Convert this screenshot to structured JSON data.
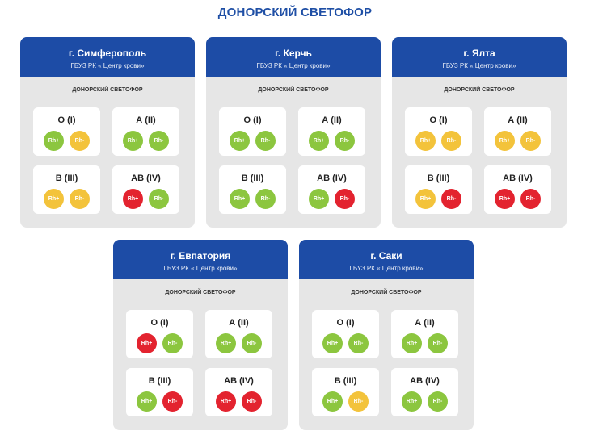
{
  "title": "ДОНОРСКИЙ СВЕТОФОР",
  "colors": {
    "green": "#8cc63f",
    "yellow": "#f3c33b",
    "red": "#e3232f",
    "header": "#1d4ca6"
  },
  "cards": [
    {
      "city": "г. Симферополь",
      "org": "ГБУЗ РК « Центр крови»",
      "subtitle": "ДОНОРСКИЙ СВЕТОФОР",
      "groups": [
        {
          "label": "О (I)",
          "rh": [
            {
              "text": "Rh+",
              "status": "green"
            },
            {
              "text": "Rh-",
              "status": "yellow"
            }
          ]
        },
        {
          "label": "А (II)",
          "rh": [
            {
              "text": "Rh+",
              "status": "green"
            },
            {
              "text": "Rh-",
              "status": "green"
            }
          ]
        },
        {
          "label": "В (III)",
          "rh": [
            {
              "text": "Rh+",
              "status": "yellow"
            },
            {
              "text": "Rh-",
              "status": "yellow"
            }
          ]
        },
        {
          "label": "АВ (IV)",
          "rh": [
            {
              "text": "Rh+",
              "status": "red"
            },
            {
              "text": "Rh-",
              "status": "green"
            }
          ]
        }
      ]
    },
    {
      "city": "г. Керчь",
      "org": "ГБУЗ РК « Центр крови»",
      "subtitle": "ДОНОРСКИЙ СВЕТОФОР",
      "groups": [
        {
          "label": "О (I)",
          "rh": [
            {
              "text": "Rh+",
              "status": "green"
            },
            {
              "text": "Rh-",
              "status": "green"
            }
          ]
        },
        {
          "label": "А (II)",
          "rh": [
            {
              "text": "Rh+",
              "status": "green"
            },
            {
              "text": "Rh-",
              "status": "green"
            }
          ]
        },
        {
          "label": "В (III)",
          "rh": [
            {
              "text": "Rh+",
              "status": "green"
            },
            {
              "text": "Rh-",
              "status": "green"
            }
          ]
        },
        {
          "label": "АВ (IV)",
          "rh": [
            {
              "text": "Rh+",
              "status": "green"
            },
            {
              "text": "Rh-",
              "status": "red"
            }
          ]
        }
      ]
    },
    {
      "city": "г. Ялта",
      "org": "ГБУЗ РК « Центр крови»",
      "subtitle": "ДОНОРСКИЙ СВЕТОФОР",
      "groups": [
        {
          "label": "О (I)",
          "rh": [
            {
              "text": "Rh+",
              "status": "yellow"
            },
            {
              "text": "Rh-",
              "status": "yellow"
            }
          ]
        },
        {
          "label": "А (II)",
          "rh": [
            {
              "text": "Rh+",
              "status": "yellow"
            },
            {
              "text": "Rh-",
              "status": "yellow"
            }
          ]
        },
        {
          "label": "В (III)",
          "rh": [
            {
              "text": "Rh+",
              "status": "yellow"
            },
            {
              "text": "Rh-",
              "status": "red"
            }
          ]
        },
        {
          "label": "АВ (IV)",
          "rh": [
            {
              "text": "Rh+",
              "status": "red"
            },
            {
              "text": "Rh-",
              "status": "red"
            }
          ]
        }
      ]
    },
    {
      "city": "г. Евпатория",
      "org": "ГБУЗ РК « Центр крови»",
      "subtitle": "ДОНОРСКИЙ СВЕТОФОР",
      "groups": [
        {
          "label": "О (I)",
          "rh": [
            {
              "text": "Rh+",
              "status": "red"
            },
            {
              "text": "Rh-",
              "status": "green"
            }
          ]
        },
        {
          "label": "А (II)",
          "rh": [
            {
              "text": "Rh+",
              "status": "green"
            },
            {
              "text": "Rh-",
              "status": "green"
            }
          ]
        },
        {
          "label": "В (III)",
          "rh": [
            {
              "text": "Rh+",
              "status": "green"
            },
            {
              "text": "Rh-",
              "status": "red"
            }
          ]
        },
        {
          "label": "АВ (IV)",
          "rh": [
            {
              "text": "Rh+",
              "status": "red"
            },
            {
              "text": "Rh-",
              "status": "red"
            }
          ]
        }
      ]
    },
    {
      "city": "г. Саки",
      "org": "ГБУЗ РК « Центр крови»",
      "subtitle": "ДОНОРСКИЙ СВЕТОФОР",
      "groups": [
        {
          "label": "О (I)",
          "rh": [
            {
              "text": "Rh+",
              "status": "green"
            },
            {
              "text": "Rh-",
              "status": "green"
            }
          ]
        },
        {
          "label": "А (II)",
          "rh": [
            {
              "text": "Rh+",
              "status": "green"
            },
            {
              "text": "Rh-",
              "status": "green"
            }
          ]
        },
        {
          "label": "В (III)",
          "rh": [
            {
              "text": "Rh+",
              "status": "green"
            },
            {
              "text": "Rh-",
              "status": "yellow"
            }
          ]
        },
        {
          "label": "АВ (IV)",
          "rh": [
            {
              "text": "Rh+",
              "status": "green"
            },
            {
              "text": "Rh-",
              "status": "green"
            }
          ]
        }
      ]
    }
  ]
}
